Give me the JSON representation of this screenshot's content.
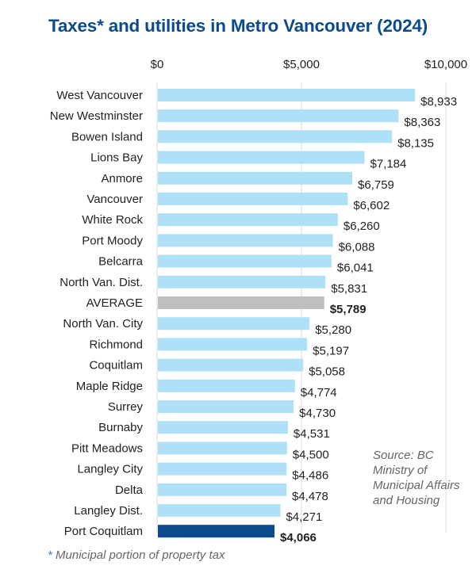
{
  "chart_data": {
    "type": "bar",
    "orientation": "horizontal",
    "title": "Taxes* and utilities in Metro Vancouver (2024)",
    "xlabel": "",
    "ylabel": "",
    "xlim": [
      0,
      10000
    ],
    "x_ticks": [
      "$0",
      "$5,000",
      "$10,000"
    ],
    "x_tick_values": [
      0,
      5000,
      10000
    ],
    "grid": true,
    "categories": [
      "West Vancouver",
      "New Westminster",
      "Bowen Island",
      "Lions Bay",
      "Anmore",
      "Vancouver",
      "White Rock",
      "Port Moody",
      "Belcarra",
      "North Van. Dist.",
      "AVERAGE",
      "North Van. City",
      "Richmond",
      "Coquitlam",
      "Maple Ridge",
      "Surrey",
      "Burnaby",
      "Pitt Meadows",
      "Langley City",
      "Delta",
      "Langley Dist.",
      "Port Coquitlam"
    ],
    "values": [
      8933,
      8363,
      8135,
      7184,
      6759,
      6602,
      6260,
      6088,
      6041,
      5831,
      5789,
      5280,
      5197,
      5058,
      4774,
      4730,
      4531,
      4500,
      4486,
      4478,
      4271,
      4066
    ],
    "value_labels": [
      "$8,933",
      "$8,363",
      "$8,135",
      "$7,184",
      "$6,759",
      "$6,602",
      "$6,260",
      "$6,088",
      "$6,041",
      "$5,831",
      "$5,789",
      "$5,280",
      "$5,197",
      "$5,058",
      "$4,774",
      "$4,730",
      "$4,531",
      "$4,500",
      "$4,486",
      "$4,478",
      "$4,271",
      "$4,066"
    ],
    "highlights": {
      "AVERAGE": "average",
      "Port Coquitlam": "highlight",
      "Port Moody": "muted-label"
    },
    "colors": {
      "bar": "#aee0f7",
      "average": "#bfbfbf",
      "highlight": "#0b4a8b",
      "title": "#0b4a8b",
      "muted_label": "#808080",
      "grid": "#d9d9d9"
    },
    "annotations": {
      "source": "Source: BC Ministry of Municipal Affairs and Housing",
      "footnote_star": "*",
      "footnote": "Municipal portion of property tax"
    }
  }
}
